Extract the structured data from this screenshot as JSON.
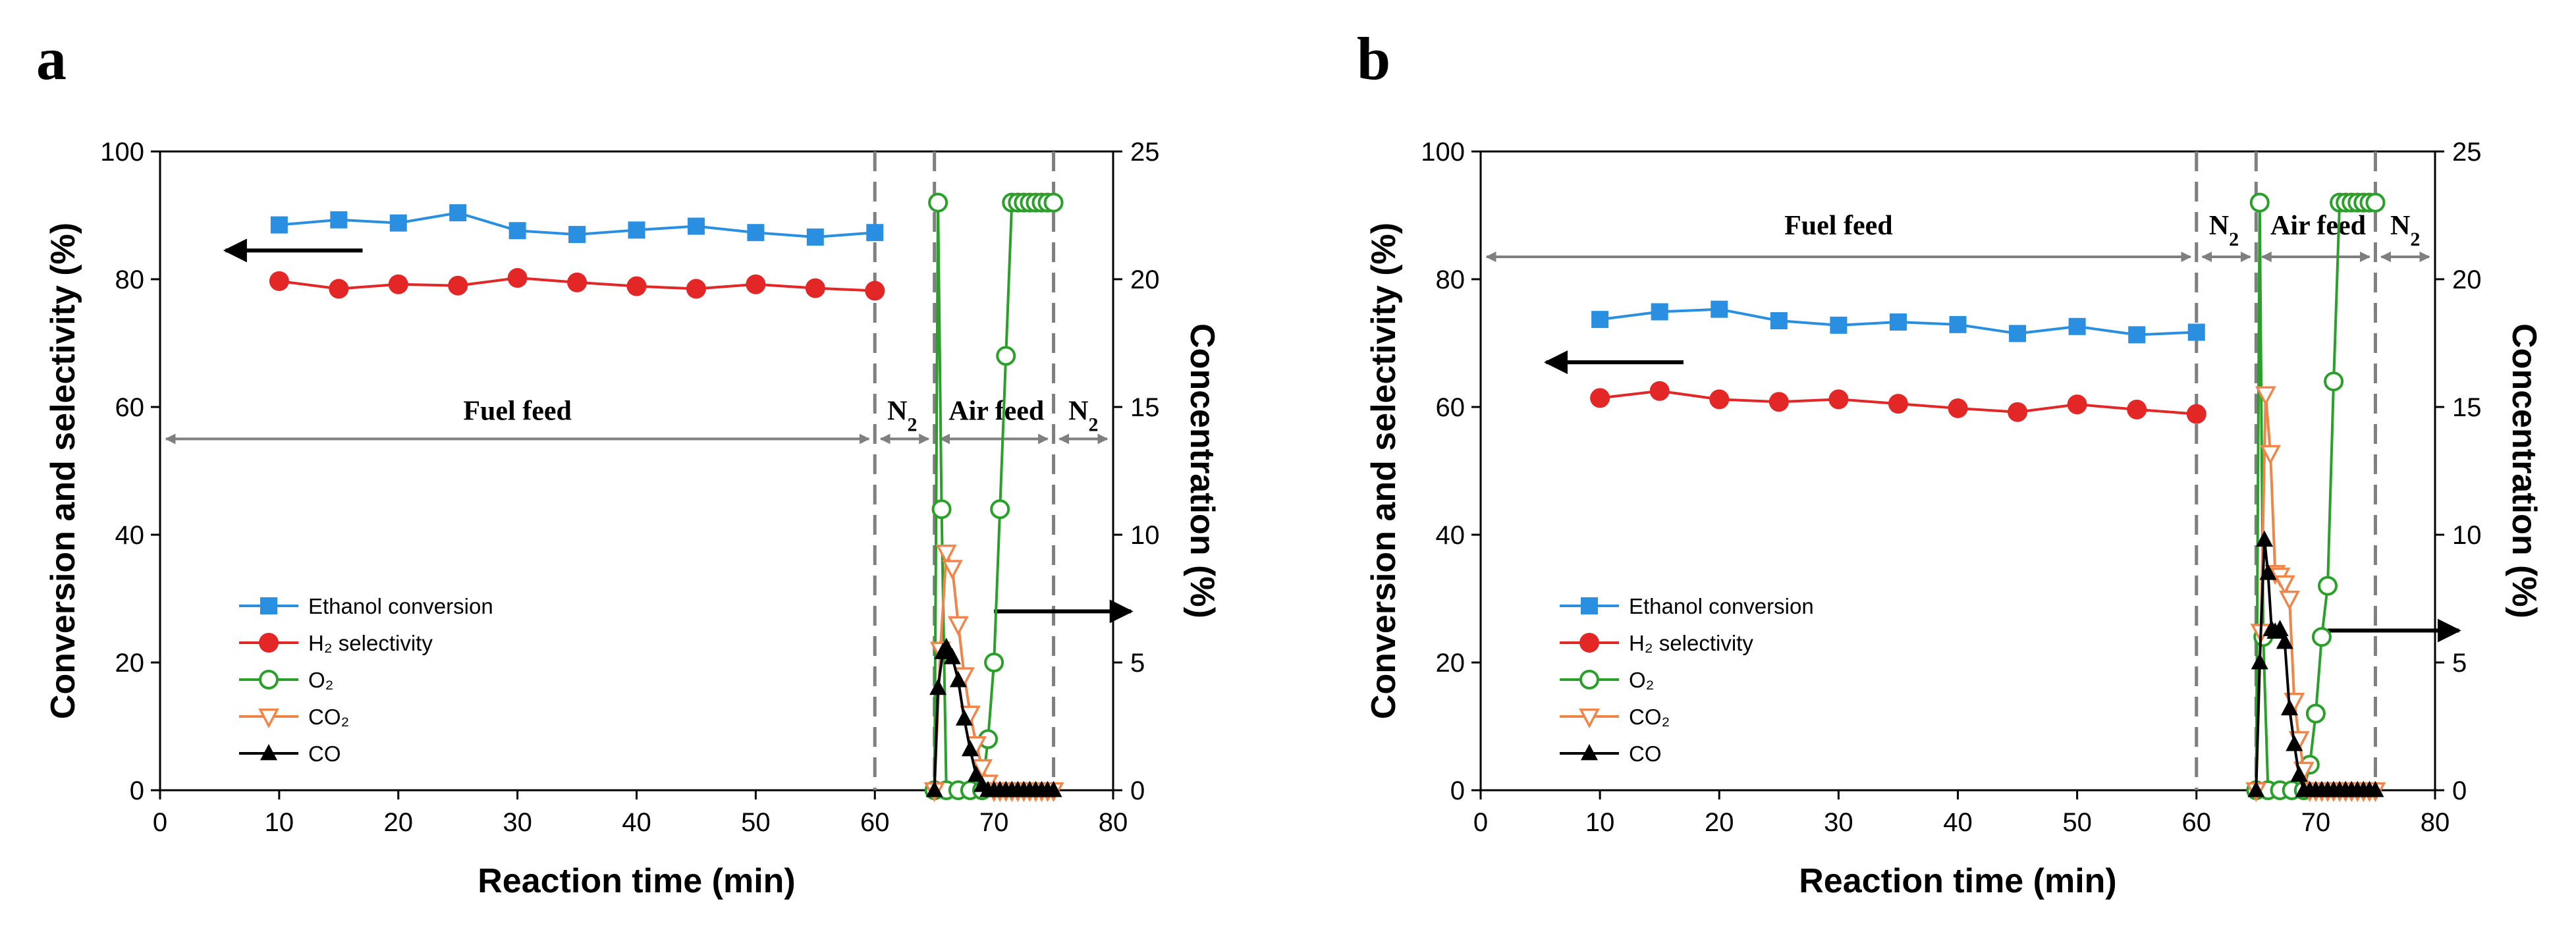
{
  "colors": {
    "ethanol": "#2a8fe0",
    "h2": "#e32626",
    "o2": "#2aa02a",
    "co2": "#f0854a",
    "co": "#000000",
    "divider": "#7f7f7f",
    "arrow": "#7f7f7f"
  },
  "chart_data": [
    {
      "id": "a",
      "panel_label": "a",
      "type": "line",
      "xlabel": "Reaction time (min)",
      "ylabel_left": "Conversion and selectivity (%)",
      "ylabel_right": "Concentration (%)",
      "xlim": [
        0,
        80
      ],
      "ylim_left": [
        0,
        100
      ],
      "ylim_right": [
        0,
        25
      ],
      "xticks": [
        "0",
        "10",
        "20",
        "30",
        "40",
        "50",
        "60",
        "70",
        "80"
      ],
      "yticks_left": [
        "0",
        "20",
        "40",
        "60",
        "80",
        "100"
      ],
      "yticks_right": [
        "0",
        "5",
        "10",
        "15",
        "20",
        "25"
      ],
      "dividers": [
        60,
        65,
        75
      ],
      "regions": [
        {
          "label": "Fuel feed",
          "sub": "",
          "x0": 0.5,
          "x1": 59.5,
          "y": 55,
          "tx": 30,
          "ty": 58
        },
        {
          "label": "N",
          "sub": "2",
          "x0": 60.5,
          "x1": 64.5,
          "y": 55,
          "tx": 62.3,
          "ty": 58
        },
        {
          "label": "Air feed",
          "sub": "",
          "x0": 65.5,
          "x1": 74.5,
          "y": 55,
          "tx": 70.2,
          "ty": 58
        },
        {
          "label": "N",
          "sub": "2",
          "x0": 75.5,
          "x1": 79.5,
          "y": 55,
          "tx": 77.5,
          "ty": 58
        }
      ],
      "axis_arrows": {
        "left": {
          "x0": 17,
          "x1": 5.5,
          "y": 84.5
        },
        "right": {
          "x0": 70,
          "x1": 81.5,
          "y": 28
        }
      },
      "legend": [
        "Ethanol conversion",
        "H₂ selectivity",
        "O₂",
        "CO₂",
        "CO"
      ],
      "series": [
        {
          "name": "Ethanol conversion",
          "axis": "left",
          "marker": "square",
          "color": "#2a8fe0",
          "x": [
            10,
            15,
            20,
            25,
            30,
            35,
            40,
            45,
            50,
            55,
            60
          ],
          "y": [
            88.5,
            89.3,
            88.8,
            90.4,
            87.6,
            87.0,
            87.7,
            88.3,
            87.3,
            86.6,
            87.3
          ]
        },
        {
          "name": "H₂ selectivity",
          "axis": "left",
          "marker": "circle",
          "color": "#e32626",
          "x": [
            10,
            15,
            20,
            25,
            30,
            35,
            40,
            45,
            50,
            55,
            60
          ],
          "y": [
            79.7,
            78.5,
            79.2,
            79.0,
            80.2,
            79.5,
            78.9,
            78.5,
            79.2,
            78.6,
            78.2
          ]
        },
        {
          "name": "O₂",
          "axis": "right",
          "marker": "circle-open",
          "color": "#2aa02a",
          "x": [
            65,
            65.3,
            65.6,
            66,
            67,
            68,
            69,
            69.5,
            70,
            70.5,
            71,
            71.5,
            72,
            72.5,
            73,
            73.5,
            74,
            74.5,
            75
          ],
          "y": [
            0,
            23,
            11,
            0,
            0,
            0,
            0,
            2,
            5,
            11,
            17,
            23,
            23,
            23,
            23,
            23,
            23,
            23,
            23
          ]
        },
        {
          "name": "CO₂",
          "axis": "right",
          "marker": "triangle-down-open",
          "color": "#f0854a",
          "x": [
            65,
            65.5,
            66,
            66.5,
            67,
            67.5,
            68,
            68.5,
            69,
            69.5,
            70,
            70.5,
            71,
            71.5,
            72,
            72.5,
            73,
            73.5,
            74,
            74.5,
            75
          ],
          "y": [
            0,
            5.5,
            9.3,
            8.7,
            6.5,
            4.5,
            3.0,
            1.8,
            0.9,
            0.3,
            0,
            0,
            0,
            0,
            0,
            0,
            0,
            0,
            0,
            0,
            0
          ]
        },
        {
          "name": "CO",
          "axis": "right",
          "marker": "triangle",
          "color": "#000000",
          "x": [
            65,
            65.3,
            65.7,
            66,
            66.5,
            67,
            67.5,
            68,
            68.5,
            69,
            69.5,
            70,
            70.5,
            71,
            71.5,
            72,
            72.5,
            73,
            73.5,
            74,
            74.5,
            75
          ],
          "y": [
            0,
            4.0,
            5.4,
            5.6,
            5.2,
            4.3,
            2.8,
            1.6,
            0.6,
            0.2,
            0,
            0,
            0,
            0,
            0,
            0,
            0,
            0,
            0,
            0,
            0,
            0
          ]
        }
      ]
    },
    {
      "id": "b",
      "panel_label": "b",
      "type": "line",
      "xlabel": "Reaction time (min)",
      "ylabel_left": "Conversion and selectivity (%)",
      "ylabel_right": "Concentration (%)",
      "xlim": [
        0,
        80
      ],
      "ylim_left": [
        0,
        100
      ],
      "ylim_right": [
        0,
        25
      ],
      "xticks": [
        "0",
        "10",
        "20",
        "30",
        "40",
        "50",
        "60",
        "70",
        "80"
      ],
      "yticks_left": [
        "0",
        "20",
        "40",
        "60",
        "80",
        "100"
      ],
      "yticks_right": [
        "0",
        "5",
        "10",
        "15",
        "20",
        "25"
      ],
      "dividers": [
        60,
        65,
        75
      ],
      "regions": [
        {
          "label": "Fuel feed",
          "sub": "",
          "x0": 0.5,
          "x1": 59.5,
          "y": 83.5,
          "tx": 30,
          "ty": 87
        },
        {
          "label": "N",
          "sub": "2",
          "x0": 60.5,
          "x1": 64.5,
          "y": 83.5,
          "tx": 62.3,
          "ty": 87
        },
        {
          "label": "Air feed",
          "sub": "",
          "x0": 65.5,
          "x1": 74.5,
          "y": 83.5,
          "tx": 70.2,
          "ty": 87
        },
        {
          "label": "N",
          "sub": "2",
          "x0": 75.5,
          "x1": 79.5,
          "y": 83.5,
          "tx": 77.5,
          "ty": 87
        }
      ],
      "axis_arrows": {
        "left": {
          "x0": 17,
          "x1": 5.5,
          "y": 67
        },
        "right": {
          "x0": 71,
          "x1": 82,
          "y": 25
        }
      },
      "legend": [
        "Ethanol conversion",
        "H₂ selectivity",
        "O₂",
        "CO₂",
        "CO"
      ],
      "series": [
        {
          "name": "Ethanol conversion",
          "axis": "left",
          "marker": "square",
          "color": "#2a8fe0",
          "x": [
            10,
            15,
            20,
            25,
            30,
            35,
            40,
            45,
            50,
            55,
            60
          ],
          "y": [
            73.7,
            74.9,
            75.3,
            73.5,
            72.8,
            73.3,
            72.9,
            71.5,
            72.6,
            71.3,
            71.7
          ]
        },
        {
          "name": "H₂ selectivity",
          "axis": "left",
          "marker": "circle",
          "color": "#e32626",
          "x": [
            10,
            15,
            20,
            25,
            30,
            35,
            40,
            45,
            50,
            55,
            60
          ],
          "y": [
            61.4,
            62.5,
            61.2,
            60.8,
            61.2,
            60.5,
            59.8,
            59.2,
            60.4,
            59.6,
            58.9
          ]
        },
        {
          "name": "O₂",
          "axis": "right",
          "marker": "circle-open",
          "color": "#2aa02a",
          "x": [
            65,
            65.3,
            65.6,
            66,
            67,
            68,
            69,
            69.5,
            70,
            70.5,
            71,
            71.5,
            72,
            72.5,
            73,
            73.5,
            74,
            74.5,
            75
          ],
          "y": [
            0,
            23,
            6,
            0,
            0,
            0,
            0,
            1,
            3,
            6,
            8,
            16,
            23,
            23,
            23,
            23,
            23,
            23,
            23
          ]
        },
        {
          "name": "CO₂",
          "axis": "right",
          "marker": "triangle-down-open",
          "color": "#f0854a",
          "x": [
            65,
            65.4,
            65.8,
            66.2,
            66.6,
            67,
            67.4,
            67.8,
            68.2,
            68.6,
            69,
            69.5,
            70,
            70.5,
            71,
            71.5,
            72,
            72.5,
            73,
            73.5,
            74,
            74.5,
            75
          ],
          "y": [
            0,
            6.2,
            15.5,
            13.2,
            8.5,
            8.4,
            8.1,
            7.5,
            3.5,
            2.0,
            0.8,
            0,
            0,
            0,
            0,
            0,
            0,
            0,
            0,
            0,
            0,
            0,
            0
          ]
        },
        {
          "name": "CO",
          "axis": "right",
          "marker": "triangle",
          "color": "#000000",
          "x": [
            65,
            65.3,
            65.7,
            66,
            66.3,
            66.6,
            67,
            67.4,
            67.8,
            68.2,
            68.6,
            69,
            69.5,
            70,
            70.5,
            71,
            71.5,
            72,
            72.5,
            73,
            73.5,
            74,
            74.5,
            75
          ],
          "y": [
            0,
            5.0,
            9.8,
            8.5,
            6.3,
            6.2,
            6.3,
            5.8,
            3.2,
            1.8,
            0.6,
            0,
            0,
            0,
            0,
            0,
            0,
            0,
            0,
            0,
            0,
            0,
            0,
            0
          ]
        }
      ]
    }
  ]
}
